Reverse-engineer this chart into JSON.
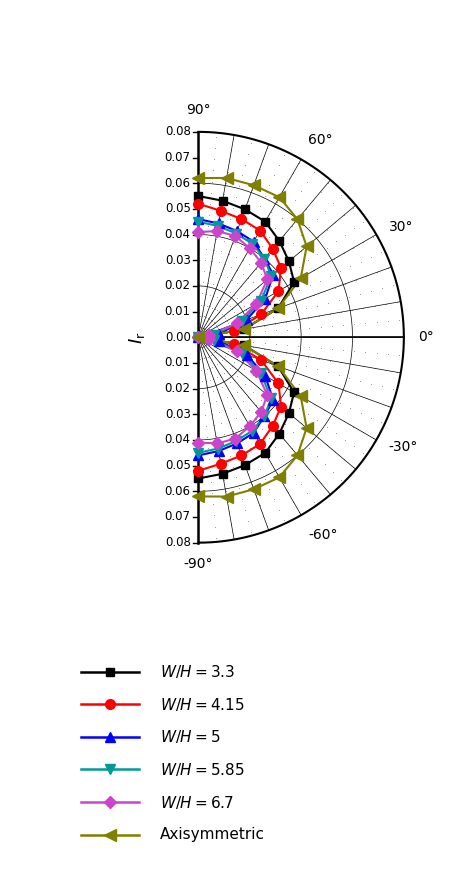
{
  "series": {
    "WH_3.3": {
      "label": "W/H=3.3",
      "color": "#000000",
      "marker": "s",
      "markersize": 6,
      "angles_deg": [
        90,
        80,
        70,
        60,
        50,
        40,
        30,
        20,
        10,
        0,
        -10,
        -20,
        -30,
        -40,
        -50,
        -60,
        -70,
        -80,
        -90
      ],
      "Ir": [
        0.055,
        0.054,
        0.053,
        0.052,
        0.049,
        0.046,
        0.043,
        0.033,
        0.018,
        0.0,
        0.018,
        0.033,
        0.043,
        0.046,
        0.049,
        0.052,
        0.053,
        0.054,
        0.055
      ]
    },
    "WH_4.15": {
      "label": "W/H=4.15",
      "color": "#ff0000",
      "marker": "o",
      "markersize": 7,
      "angles_deg": [
        90,
        80,
        70,
        60,
        50,
        40,
        30,
        20,
        10,
        0,
        -10,
        -20,
        -30,
        -40,
        -50,
        -60,
        -70,
        -80,
        -90
      ],
      "Ir": [
        0.052,
        0.05,
        0.049,
        0.048,
        0.045,
        0.042,
        0.036,
        0.026,
        0.014,
        0.0,
        0.014,
        0.026,
        0.036,
        0.042,
        0.045,
        0.048,
        0.049,
        0.05,
        0.052
      ]
    },
    "WH_5": {
      "label": "W/H=5",
      "color": "#0000ff",
      "marker": "^",
      "markersize": 7,
      "angles_deg": [
        90,
        80,
        70,
        60,
        50,
        40,
        30,
        20,
        10,
        0,
        -10,
        -20,
        -30,
        -40,
        -50,
        -60,
        -70,
        -80,
        -90
      ],
      "Ir": [
        0.046,
        0.045,
        0.044,
        0.043,
        0.04,
        0.038,
        0.03,
        0.02,
        0.008,
        0.0,
        0.008,
        0.02,
        0.03,
        0.038,
        0.04,
        0.043,
        0.044,
        0.045,
        0.046
      ]
    },
    "WH_5.85": {
      "label": "W/H=5.85",
      "color": "#009999",
      "marker": "v",
      "markersize": 7,
      "angles_deg": [
        90,
        80,
        70,
        60,
        50,
        40,
        30,
        20,
        10,
        0,
        -10,
        -20,
        -30,
        -40,
        -50,
        -60,
        -70,
        -80,
        -90
      ],
      "Ir": [
        0.045,
        0.044,
        0.043,
        0.042,
        0.04,
        0.037,
        0.028,
        0.018,
        0.006,
        0.0,
        0.006,
        0.018,
        0.028,
        0.037,
        0.04,
        0.042,
        0.043,
        0.044,
        0.045
      ]
    },
    "WH_6.7": {
      "label": "W/H=6.7",
      "color": "#cc44cc",
      "marker": "D",
      "markersize": 6,
      "angles_deg": [
        90,
        80,
        70,
        60,
        50,
        40,
        30,
        20,
        10,
        0,
        -10,
        -20,
        -30,
        -40,
        -50,
        -60,
        -70,
        -80,
        -90
      ],
      "Ir": [
        0.041,
        0.042,
        0.042,
        0.04,
        0.038,
        0.035,
        0.026,
        0.016,
        0.004,
        0.0,
        0.004,
        0.016,
        0.026,
        0.035,
        0.038,
        0.04,
        0.042,
        0.042,
        0.041
      ]
    },
    "Axisymmetric": {
      "label": "Axisymmetric",
      "color": "#808000",
      "marker": "<",
      "markersize": 8,
      "angles_deg": [
        90,
        80,
        70,
        60,
        50,
        40,
        30,
        20,
        10,
        0,
        -10,
        -20,
        -30,
        -40,
        -50,
        -60,
        -70,
        -80,
        -90
      ],
      "Ir": [
        0.062,
        0.063,
        0.063,
        0.063,
        0.06,
        0.055,
        0.046,
        0.033,
        0.018,
        0.0,
        0.018,
        0.033,
        0.046,
        0.055,
        0.06,
        0.063,
        0.063,
        0.063,
        0.062
      ]
    }
  },
  "radial_gridlines": [
    0.02,
    0.04,
    0.06,
    0.08
  ],
  "angular_gridlines_deg": [
    -90,
    -80,
    -70,
    -60,
    -50,
    -40,
    -30,
    -20,
    -10,
    0,
    10,
    20,
    30,
    40,
    50,
    60,
    70,
    80,
    90
  ],
  "angle_labels_deg": [
    90,
    60,
    30,
    0,
    -30,
    -60,
    -90
  ],
  "r_max": 0.08,
  "ylabel_ticks": [
    0.08,
    0.07,
    0.06,
    0.05,
    0.04,
    0.03,
    0.02,
    0.01,
    0.0,
    0.01,
    0.02,
    0.03,
    0.04,
    0.05,
    0.06,
    0.07,
    0.08
  ],
  "series_order": [
    "WH_3.3",
    "WH_4.15",
    "WH_5",
    "WH_5.85",
    "WH_6.7",
    "Axisymmetric"
  ],
  "fig_width": 4.74,
  "fig_height": 8.76,
  "dpi": 100
}
